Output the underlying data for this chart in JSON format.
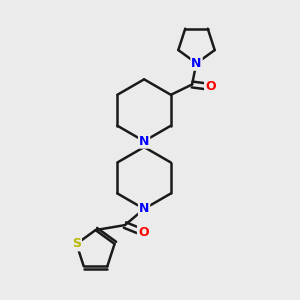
{
  "background_color": "#ebebeb",
  "bond_color": "#1a1a1a",
  "N_color": "#0000ff",
  "O_color": "#ff0000",
  "S_color": "#b8b800",
  "line_width": 1.8,
  "font_size": 9,
  "figsize": [
    3.0,
    3.0
  ],
  "dpi": 100,
  "xlim": [
    0,
    10
  ],
  "ylim": [
    0,
    10
  ]
}
